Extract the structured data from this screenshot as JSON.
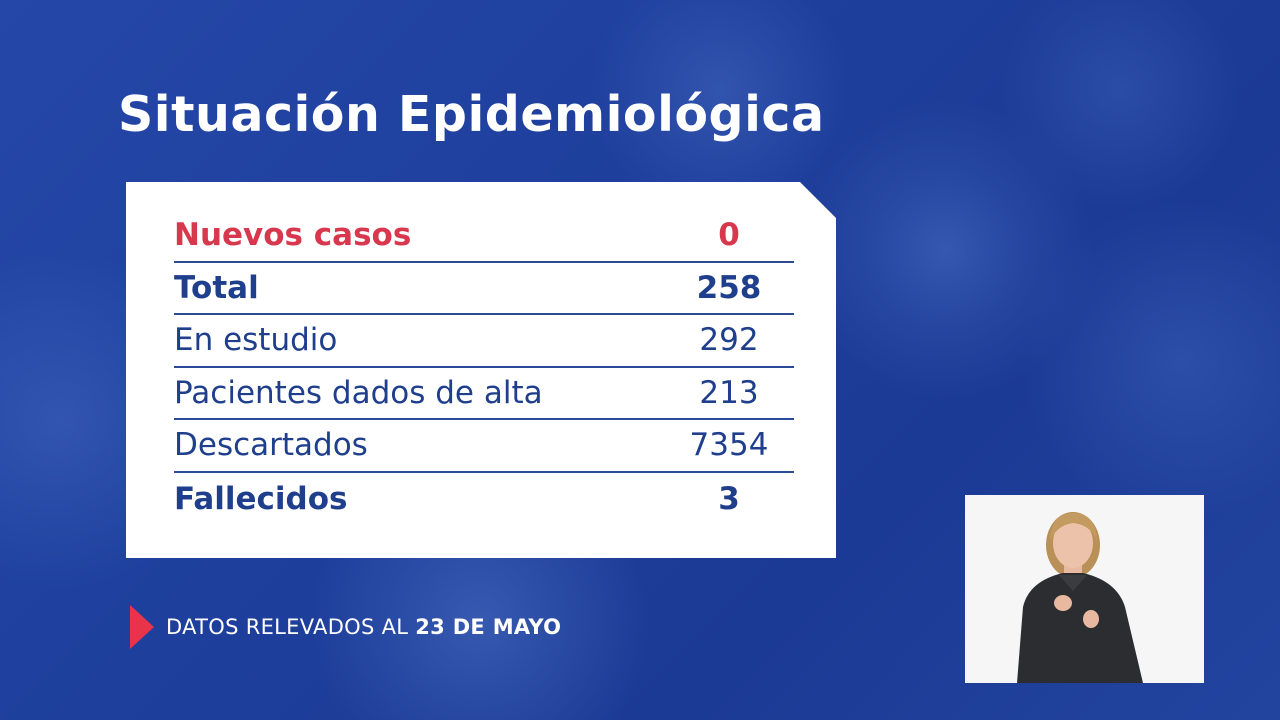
{
  "title": "Situación Epidemiológica",
  "stats": [
    {
      "label": "Nuevos casos",
      "value": "0",
      "style": "accent"
    },
    {
      "label": "Total",
      "value": "258",
      "style": "bold"
    },
    {
      "label": "En estudio",
      "value": "292",
      "style": "normal"
    },
    {
      "label": "Pacientes dados de alta",
      "value": "213",
      "style": "normal"
    },
    {
      "label": "Descartados",
      "value": "7354",
      "style": "normal"
    },
    {
      "label": "Fallecidos",
      "value": "3",
      "style": "bold"
    }
  ],
  "footer": {
    "prefix": "DATOS RELEVADOS AL ",
    "date": "23 DE MAYO"
  },
  "colors": {
    "background": "#1d3f9a",
    "accent": "#d8384e",
    "text_dark": "#1f3f8c",
    "arrow": "#e8334a"
  },
  "icons": {
    "footer_marker": "play-arrow-icon"
  }
}
